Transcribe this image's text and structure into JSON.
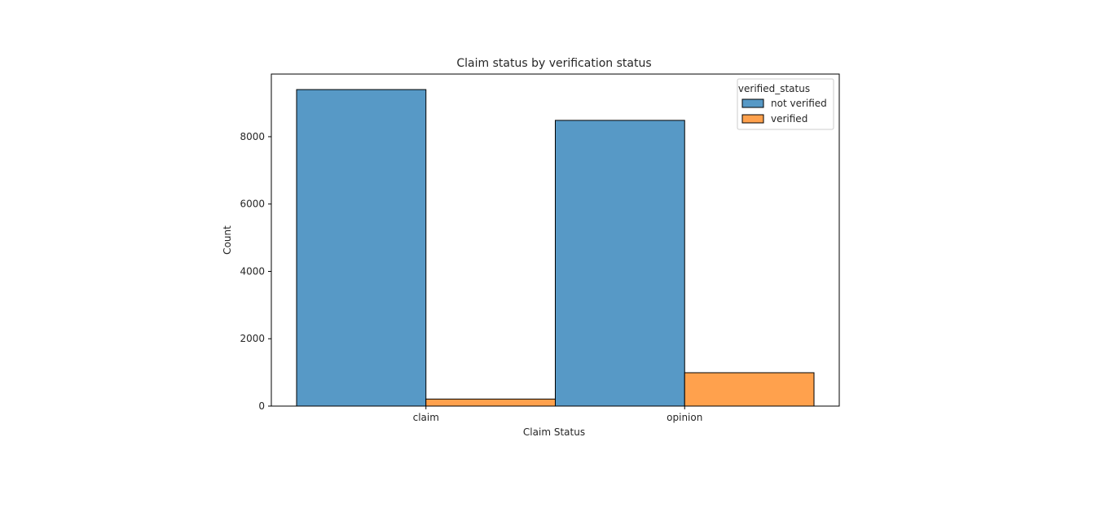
{
  "chart_data": {
    "type": "bar",
    "title": "Claim status by verification status",
    "xlabel": "Claim Status",
    "ylabel": "Count",
    "categories": [
      "claim",
      "opinion"
    ],
    "series": [
      {
        "name": "not verified",
        "values": [
          9399,
          8485
        ],
        "color": "#5799c6"
      },
      {
        "name": "verified",
        "values": [
          209,
          991
        ],
        "color": "#ffa14d"
      }
    ],
    "ylim": [
      0,
      9860
    ],
    "yticks": [
      0,
      2000,
      4000,
      6000,
      8000
    ],
    "grid": false,
    "legend": {
      "title": "verified_status",
      "position": "top-right"
    }
  }
}
